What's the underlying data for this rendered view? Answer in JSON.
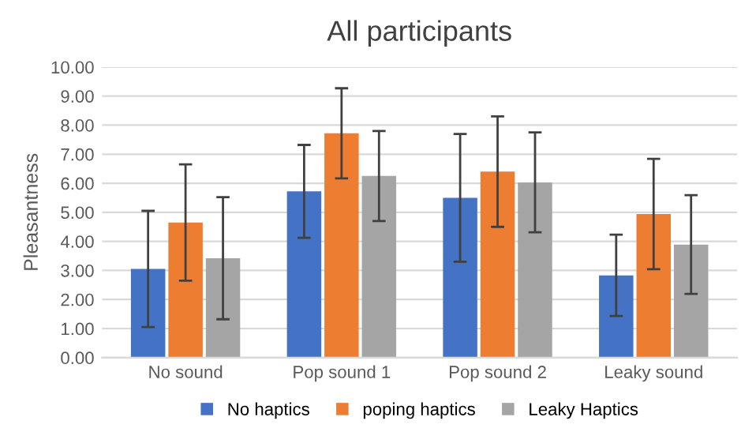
{
  "chart_data": {
    "type": "bar",
    "title": "All participants",
    "ylabel": "Pleasantness",
    "categories": [
      "No sound",
      "Pop sound 1",
      "Pop sound 2",
      "Leaky sound"
    ],
    "series": [
      {
        "name": "No haptics",
        "color": "#4472c4",
        "values": [
          3.05,
          5.72,
          5.5,
          2.83
        ],
        "errors": [
          2.0,
          1.6,
          2.2,
          1.4
        ]
      },
      {
        "name": "poping haptics",
        "color": "#ed7d31",
        "values": [
          4.65,
          7.72,
          6.4,
          4.94
        ],
        "errors": [
          2.0,
          1.55,
          1.9,
          1.9
        ]
      },
      {
        "name": "Leaky Haptics",
        "color": "#a5a5a5",
        "values": [
          3.42,
          6.25,
          6.03,
          3.89
        ],
        "errors": [
          2.1,
          1.55,
          1.72,
          1.7
        ]
      }
    ],
    "ylim": [
      0,
      10
    ],
    "yticks": [
      {
        "value": 0,
        "label": "0.00"
      },
      {
        "value": 1,
        "label": "1.00"
      },
      {
        "value": 2,
        "label": "2.00"
      },
      {
        "value": 3,
        "label": "3.00"
      },
      {
        "value": 4,
        "label": "4.00"
      },
      {
        "value": 5,
        "label": "5.00"
      },
      {
        "value": 6,
        "label": "6.00"
      },
      {
        "value": 7,
        "label": "7.00"
      },
      {
        "value": 8,
        "label": "8.00"
      },
      {
        "value": 9,
        "label": "9.00"
      },
      {
        "value": 10,
        "label": "10.00"
      }
    ],
    "grid": "y",
    "legend": "bottom"
  }
}
